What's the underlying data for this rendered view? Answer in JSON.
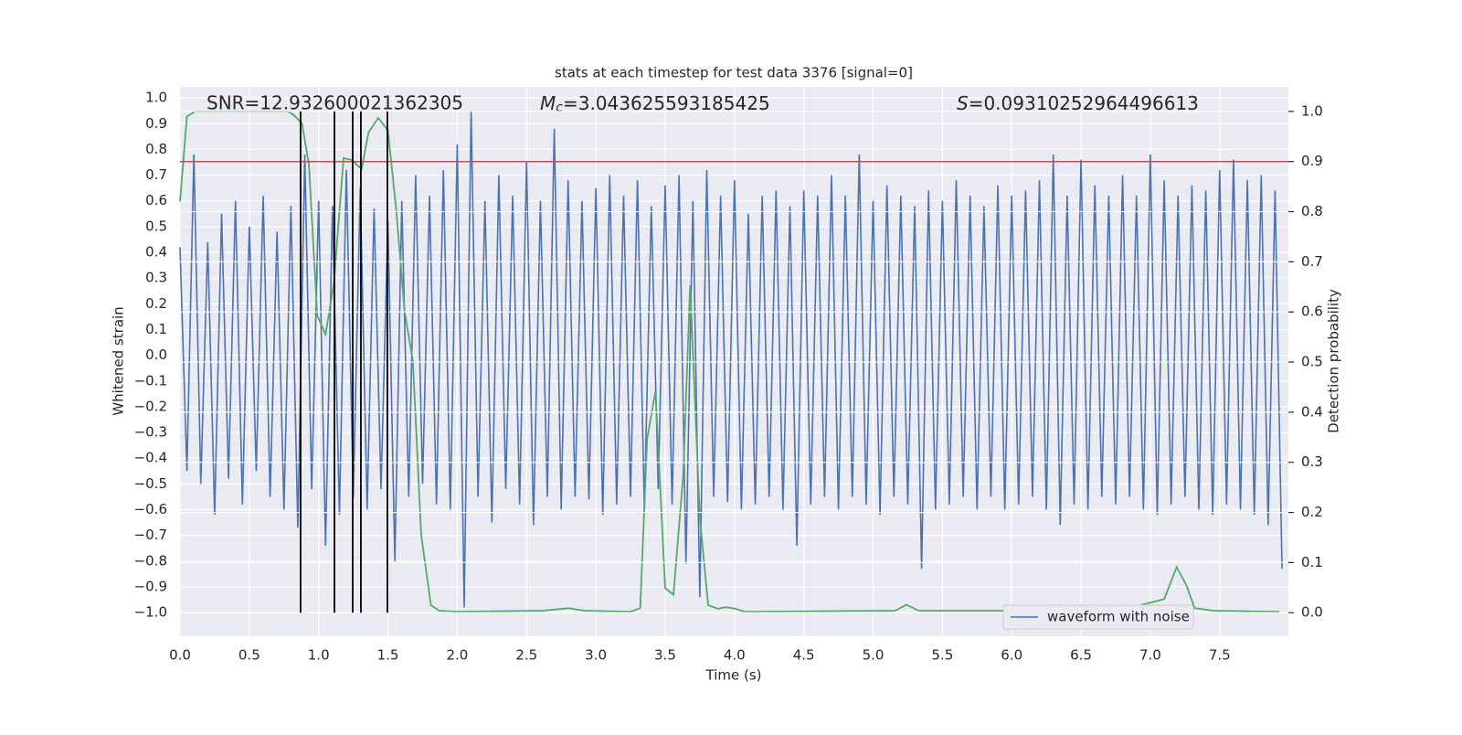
{
  "chart_data": {
    "type": "line",
    "title": "stats at each timestep for test data 3376 [signal=0]",
    "xlabel": "Time (s)",
    "ylabel": "Whitened strain",
    "y2label": "Detection probability",
    "annotations": [
      {
        "text": "SNR=12.932600021362305"
      },
      {
        "symbol": "M",
        "subscript": "c",
        "text": "=3.043625593185425"
      },
      {
        "symbol": "S",
        "text": "=0.09310252964496613"
      }
    ],
    "xlim": [
      0,
      7.996
    ],
    "ylim": [
      -1.092,
      1.043
    ],
    "y2lim": [
      -0.047,
      1.049
    ],
    "xticks": [
      {
        "value": 0,
        "label": "0.0"
      },
      0.5,
      {
        "value": 1,
        "label": "1.0"
      },
      1.5,
      {
        "value": 2,
        "label": "2.0"
      },
      2.5,
      {
        "value": 3,
        "label": "3.0"
      },
      3.5,
      {
        "value": 4,
        "label": "4.0"
      },
      4.5,
      {
        "value": 5,
        "label": "5.0"
      },
      5.5,
      {
        "value": 6,
        "label": "6.0"
      },
      6.5,
      {
        "value": 7,
        "label": "7.0"
      },
      7.5
    ],
    "yticks": [
      {
        "value": -1,
        "label": "−1.0"
      },
      {
        "value": -0.9,
        "label": "−0.9"
      },
      {
        "value": -0.8,
        "label": "−0.8"
      },
      {
        "value": -0.7,
        "label": "−0.7"
      },
      {
        "value": -0.6,
        "label": "−0.6"
      },
      {
        "value": -0.5,
        "label": "−0.5"
      },
      {
        "value": -0.4,
        "label": "−0.4"
      },
      {
        "value": -0.3,
        "label": "−0.3"
      },
      {
        "value": -0.2,
        "label": "−0.2"
      },
      {
        "value": -0.1,
        "label": "−0.1"
      },
      {
        "value": 0,
        "label": "0.0"
      },
      0.1,
      0.2,
      0.3,
      0.4,
      0.5,
      0.6,
      0.7,
      0.8,
      0.9,
      {
        "value": 1,
        "label": "1.0"
      }
    ],
    "y2ticks": [
      {
        "value": 0,
        "label": "0.0"
      },
      0.1,
      0.2,
      0.3,
      0.4,
      0.5,
      0.6,
      0.7,
      0.8,
      0.9,
      {
        "value": 1,
        "label": "1.0"
      }
    ],
    "grid": true,
    "legend_loc": "lower right",
    "series": [
      {
        "name": "waveform with noise",
        "color": "#4c72b0",
        "axis": "y",
        "x": [
          0,
          0.05,
          0.1,
          0.15,
          0.2,
          0.25,
          0.3,
          0.35,
          0.4,
          0.45,
          0.5,
          0.55,
          0.6,
          0.65,
          0.7,
          0.75,
          0.8,
          0.85,
          0.9,
          0.95,
          1,
          1.05,
          1.1,
          1.15,
          1.2,
          1.25,
          1.3,
          1.35,
          1.4,
          1.45,
          1.5,
          1.55,
          1.6,
          1.65,
          1.7,
          1.75,
          1.8,
          1.85,
          1.9,
          1.95,
          2,
          2.05,
          2.1,
          2.15,
          2.2,
          2.25,
          2.3,
          2.35,
          2.4,
          2.45,
          2.5,
          2.55,
          2.6,
          2.65,
          2.7,
          2.75,
          2.8,
          2.85,
          2.9,
          2.95,
          3,
          3.05,
          3.1,
          3.15,
          3.2,
          3.25,
          3.3,
          3.35,
          3.4,
          3.45,
          3.5,
          3.55,
          3.6,
          3.65,
          3.7,
          3.75,
          3.8,
          3.85,
          3.9,
          3.95,
          4,
          4.05,
          4.1,
          4.15,
          4.2,
          4.25,
          4.3,
          4.35,
          4.4,
          4.45,
          4.5,
          4.55,
          4.6,
          4.65,
          4.7,
          4.75,
          4.8,
          4.85,
          4.9,
          4.95,
          5,
          5.05,
          5.1,
          5.15,
          5.2,
          5.25,
          5.3,
          5.35,
          5.4,
          5.45,
          5.5,
          5.55,
          5.6,
          5.65,
          5.7,
          5.75,
          5.8,
          5.85,
          5.9,
          5.95,
          6,
          6.05,
          6.1,
          6.15,
          6.2,
          6.25,
          6.3,
          6.35,
          6.4,
          6.45,
          6.5,
          6.55,
          6.6,
          6.65,
          6.7,
          6.75,
          6.8,
          6.85,
          6.9,
          6.95,
          7,
          7.05,
          7.1,
          7.15,
          7.2,
          7.25,
          7.3,
          7.35,
          7.4,
          7.45,
          7.5,
          7.55,
          7.6,
          7.65,
          7.7,
          7.75,
          7.8,
          7.85,
          7.9,
          7.95
        ],
        "values": [
          0.42,
          -0.45,
          0.78,
          -0.5,
          0.44,
          -0.62,
          0.55,
          -0.48,
          0.6,
          -0.58,
          0.5,
          -0.45,
          0.62,
          -0.55,
          0.48,
          -0.6,
          0.58,
          -0.67,
          0.78,
          -0.52,
          0.6,
          -0.74,
          0.58,
          -0.62,
          0.72,
          -0.55,
          0.65,
          -0.6,
          0.57,
          -0.52,
          0.52,
          -0.8,
          0.6,
          -0.55,
          0.7,
          -0.5,
          0.62,
          -0.58,
          0.72,
          -0.6,
          0.82,
          -0.98,
          0.95,
          -0.55,
          0.6,
          -0.65,
          0.7,
          -0.52,
          0.62,
          -0.58,
          0.75,
          -0.66,
          0.6,
          -0.55,
          0.88,
          -0.6,
          0.68,
          -0.55,
          0.6,
          -0.56,
          0.65,
          -0.62,
          0.7,
          -0.58,
          0.62,
          -0.55,
          0.68,
          -0.6,
          0.58,
          -0.52,
          0.66,
          -0.58,
          0.7,
          -0.81,
          0.6,
          -0.94,
          0.72,
          -0.55,
          0.62,
          -0.57,
          0.68,
          -0.6,
          0.55,
          -0.58,
          0.62,
          -0.55,
          0.64,
          -0.6,
          0.58,
          -0.74,
          0.64,
          -0.58,
          0.62,
          -0.55,
          0.7,
          -0.6,
          0.62,
          -0.55,
          0.78,
          -0.58,
          0.6,
          -0.62,
          0.66,
          -0.55,
          0.62,
          -0.58,
          0.58,
          -0.83,
          0.64,
          -0.6,
          0.6,
          -0.58,
          0.68,
          -0.55,
          0.62,
          -0.6,
          0.58,
          -0.55,
          0.66,
          -0.6,
          0.62,
          -0.58,
          0.64,
          -0.55,
          0.68,
          -0.6,
          0.78,
          -0.66,
          0.62,
          -0.58,
          0.76,
          -0.6,
          0.66,
          -0.55,
          0.62,
          -0.58,
          0.7,
          -0.55,
          0.62,
          -0.6,
          0.78,
          -0.62,
          0.68,
          -0.58,
          0.62,
          -0.55,
          0.66,
          -0.6,
          0.64,
          -0.62,
          0.72,
          -0.58,
          0.76,
          -0.6,
          0.68,
          -0.62,
          0.7,
          -0.66,
          0.64,
          -0.83
        ]
      },
      {
        "color": "#55a868",
        "axis": "y2",
        "x": [
          0,
          0.05,
          0.11,
          0.78,
          0.82,
          0.88,
          0.93,
          0.99,
          1.05,
          1.11,
          1.18,
          1.24,
          1.31,
          1.36,
          1.43,
          1.5,
          1.56,
          1.62,
          1.68,
          1.74,
          1.81,
          1.87,
          2,
          2.62,
          2.8,
          2.92,
          3.25,
          3.32,
          3.37,
          3.43,
          3.5,
          3.56,
          3.63,
          3.68,
          3.75,
          3.81,
          3.88,
          3.94,
          4.01,
          4.07,
          5.16,
          5.24,
          5.33,
          6.81,
          6.88,
          6.94,
          7.1,
          7.19,
          7.26,
          7.32,
          7.38,
          7.45,
          7.93
        ],
        "values": [
          0.82,
          0.99,
          1,
          1,
          0.993,
          0.976,
          0.894,
          0.593,
          0.555,
          0.657,
          0.907,
          0.903,
          0.885,
          0.958,
          0.987,
          0.962,
          0.803,
          0.602,
          0.502,
          0.155,
          0.015,
          0.004,
          0.002,
          0.004,
          0.009,
          0.004,
          0.002,
          0.009,
          0.347,
          0.442,
          0.049,
          0.036,
          0.274,
          0.653,
          0.19,
          0.015,
          0.008,
          0.011,
          0.008,
          0.002,
          0.004,
          0.016,
          0.004,
          0.004,
          0.007,
          0.016,
          0.027,
          0.091,
          0.055,
          0.009,
          0.007,
          0.004,
          0.002
        ]
      }
    ],
    "hlines": [
      {
        "value": 0.9,
        "axis": "y2",
        "color": "#c44e52"
      }
    ],
    "vlines": {
      "x": [
        0.87,
        1.114,
        1.246,
        1.305,
        1.496
      ],
      "ymin": 0,
      "ymax": 1,
      "axis": "y2",
      "color": "#000000"
    }
  }
}
